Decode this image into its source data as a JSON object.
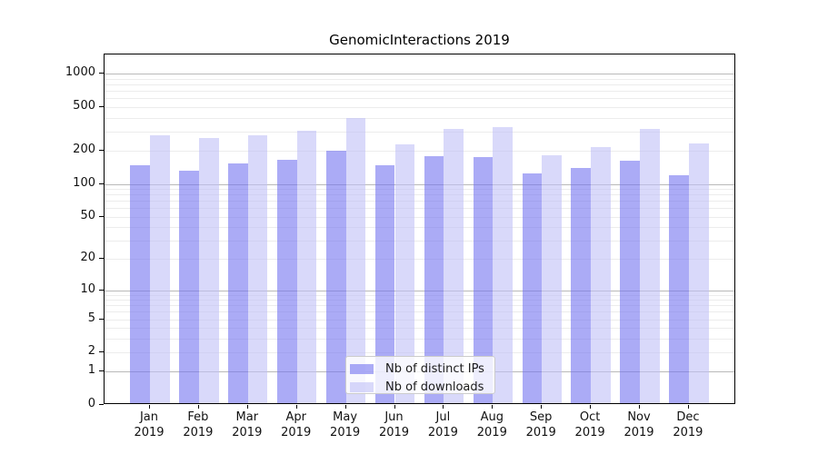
{
  "title": "GenomicInteractions 2019",
  "colors": {
    "distinct_ips_bar": "rgba(115,115,240,0.6)",
    "downloads_bar": "rgba(192,192,246,0.6)",
    "major_gridline": "#b9b9b9",
    "minor_gridline": "#ececec",
    "axis_frame": "#000000",
    "legend_border": "#cccccc"
  },
  "chart_data": {
    "type": "bar",
    "title": "GenomicInteractions 2019",
    "categories": [
      "Jan",
      "Feb",
      "Mar",
      "Apr",
      "May",
      "Jun",
      "Jul",
      "Aug",
      "Sep",
      "Oct",
      "Nov",
      "Dec"
    ],
    "x_tick_second_line": "2019",
    "series": [
      {
        "name": "Nb of distinct IPs",
        "color": "rgba(115,115,240,0.6)",
        "values": [
          143,
          128,
          147,
          159,
          192,
          142,
          173,
          169,
          120,
          135,
          158,
          115
        ]
      },
      {
        "name": "Nb of downloads",
        "color": "rgba(192,192,246,0.6)",
        "values": [
          267,
          254,
          265,
          293,
          383,
          219,
          303,
          317,
          176,
          210,
          307,
          224
        ]
      }
    ],
    "y_ticks": [
      1000,
      500,
      200,
      100,
      50,
      20,
      10,
      5,
      2,
      1,
      0
    ],
    "y_scale": "log10(1+x)",
    "ylim": [
      0,
      1500
    ],
    "grid": true,
    "legend_position": "lower center",
    "xlabel": "",
    "ylabel": ""
  }
}
